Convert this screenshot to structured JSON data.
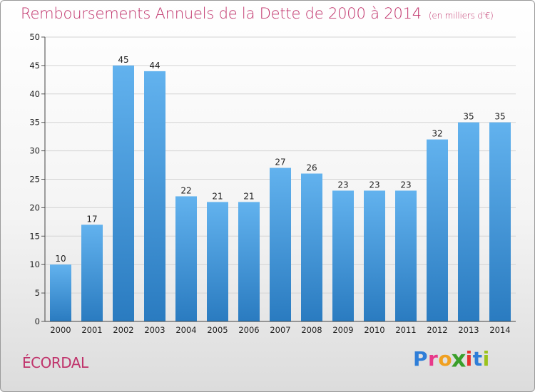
{
  "header": {
    "title": "Remboursements Annuels de la Dette de 2000 à 2014",
    "unit": "(en milliers d'€)"
  },
  "footer": {
    "commune": "ÉCORDAL",
    "logo_letters": [
      "P",
      "r",
      "o",
      "x",
      "i",
      "t",
      "i"
    ]
  },
  "colors": {
    "title": "#c0336b",
    "bar_top": "#62b2ee",
    "bar_bottom": "#2a7bc0",
    "logo": [
      "#2f7ed8",
      "#e8398a",
      "#f0a020",
      "#3a9f2a",
      "#e83030",
      "#2f7ed8",
      "#9bc31c"
    ]
  },
  "chart_data": {
    "type": "bar",
    "title": "Remboursements Annuels de la Dette de 2000 à 2014",
    "subtitle": "(en milliers d'€)",
    "xlabel": "",
    "ylabel": "",
    "categories": [
      "2000",
      "2001",
      "2002",
      "2003",
      "2004",
      "2005",
      "2006",
      "2007",
      "2008",
      "2009",
      "2010",
      "2011",
      "2012",
      "2013",
      "2014"
    ],
    "values": [
      10,
      17,
      45,
      44,
      22,
      21,
      21,
      27,
      26,
      23,
      23,
      23,
      32,
      35,
      35
    ],
    "ylim": [
      0,
      50
    ],
    "yticks": [
      0,
      5,
      10,
      15,
      20,
      25,
      30,
      35,
      40,
      45,
      50
    ],
    "grid": true,
    "legend": "none"
  }
}
